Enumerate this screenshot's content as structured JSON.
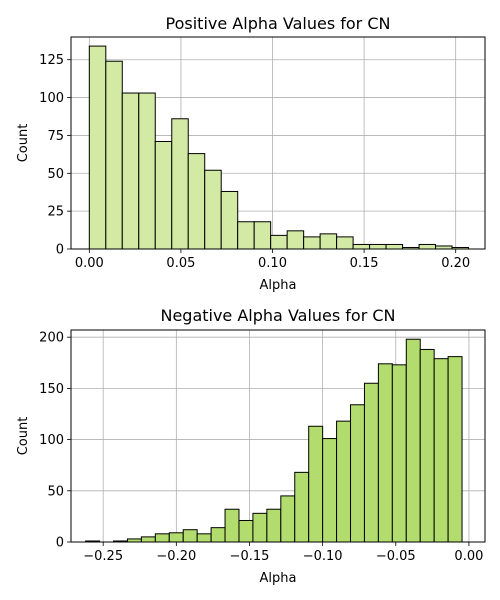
{
  "chart_data": [
    {
      "type": "bar",
      "title": "Positive Alpha Values for CN",
      "xlabel": "Alpha",
      "ylabel": "Count",
      "xlim": [
        -0.01,
        0.216
      ],
      "ylim": [
        0,
        140
      ],
      "xticks": [
        0.0,
        0.05,
        0.1,
        0.15,
        0.2
      ],
      "xtick_labels": [
        "0.00",
        "0.05",
        "0.10",
        "0.15",
        "0.20"
      ],
      "yticks": [
        0,
        25,
        50,
        75,
        100,
        125
      ],
      "ytick_labels": [
        "0",
        "25",
        "50",
        "75",
        "100",
        "125"
      ],
      "bin_start": 0.0,
      "bin_width": 0.009,
      "values": [
        134,
        124,
        103,
        103,
        71,
        86,
        63,
        52,
        38,
        18,
        18,
        9,
        12,
        8,
        10,
        8,
        3,
        3,
        3,
        1,
        3,
        2,
        1
      ],
      "grid": true,
      "bar_color": "#d3eaa5",
      "edge_color": "#000000"
    },
    {
      "type": "bar",
      "title": "Negative Alpha Values for CN",
      "xlabel": "Alpha",
      "ylabel": "Count",
      "xlim": [
        -0.272,
        0.011
      ],
      "ylim": [
        0,
        207
      ],
      "xticks": [
        -0.25,
        -0.2,
        -0.15,
        -0.1,
        -0.05,
        0.0
      ],
      "xtick_labels": [
        "−0.25",
        "−0.20",
        "−0.15",
        "−0.10",
        "−0.05",
        "0.00"
      ],
      "yticks": [
        0,
        50,
        100,
        150,
        200
      ],
      "ytick_labels": [
        "0",
        "50",
        "100",
        "150",
        "200"
      ],
      "bin_start": -0.262,
      "bin_width": 0.00953,
      "values": [
        1,
        0,
        1,
        3,
        5,
        8,
        9,
        12,
        8,
        14,
        32,
        21,
        28,
        32,
        45,
        68,
        113,
        101,
        118,
        134,
        155,
        174,
        173,
        198,
        188,
        179,
        181
      ],
      "grid": true,
      "bar_color": "#b2dc6d",
      "edge_color": "#000000"
    }
  ]
}
